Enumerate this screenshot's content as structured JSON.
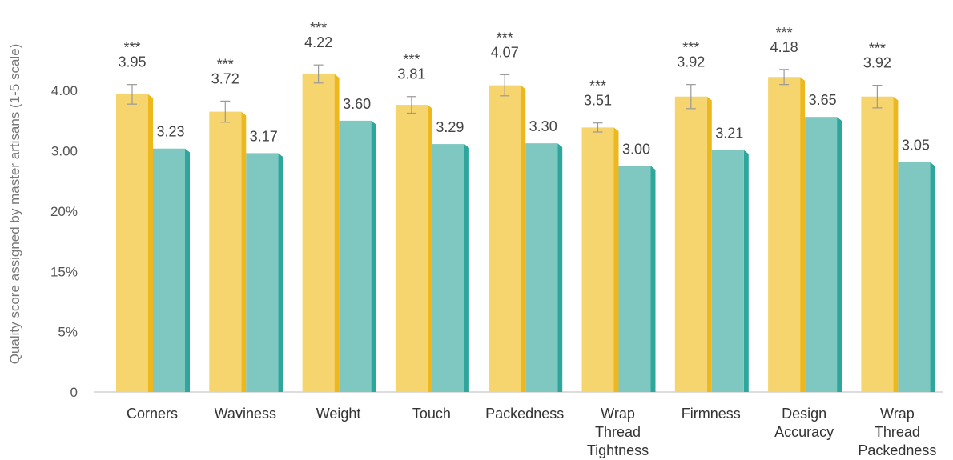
{
  "chart_data": {
    "type": "bar",
    "ylabel": "Quality score assigned by master artisans (1-5 scale)",
    "y_ticks": [
      "0",
      "5%",
      "15%",
      "20%",
      "3.00",
      "4.00"
    ],
    "categories": [
      [
        "Corners"
      ],
      [
        "Waviness"
      ],
      [
        "Weight"
      ],
      [
        "Touch"
      ],
      [
        "Packedness"
      ],
      [
        "Wrap",
        "Thread",
        "Tightness"
      ],
      [
        "Firmness"
      ],
      [
        "Design",
        "Accuracy"
      ],
      [
        "Wrap",
        "Thread",
        "Packedness"
      ]
    ],
    "series": [
      {
        "color": "#F6D46E",
        "side_color": "#EDB81E",
        "values": [
          3.95,
          3.72,
          4.22,
          3.81,
          4.07,
          3.51,
          3.92,
          4.18,
          3.92
        ],
        "labels": [
          "3.95",
          "3.72",
          "4.22",
          "3.81",
          "4.07",
          "3.51",
          "3.92",
          "4.18",
          "3.92"
        ],
        "significance": [
          "***",
          "***",
          "***",
          "***",
          "***",
          "***",
          "***",
          "***",
          "***"
        ]
      },
      {
        "color": "#7FC8C2",
        "side_color": "#2EA69C",
        "values": [
          3.23,
          3.17,
          3.6,
          3.29,
          3.3,
          3.0,
          3.21,
          3.65,
          3.05
        ],
        "labels": [
          "3.23",
          "3.17",
          "3.60",
          "3.29",
          "3.30",
          "3.00",
          "3.21",
          "3.65",
          "3.05"
        ]
      }
    ],
    "error_bars": [
      0.13,
      0.14,
      0.12,
      0.11,
      0.14,
      0.06,
      0.16,
      0.1,
      0.15
    ],
    "grid": false,
    "legend": "none"
  }
}
